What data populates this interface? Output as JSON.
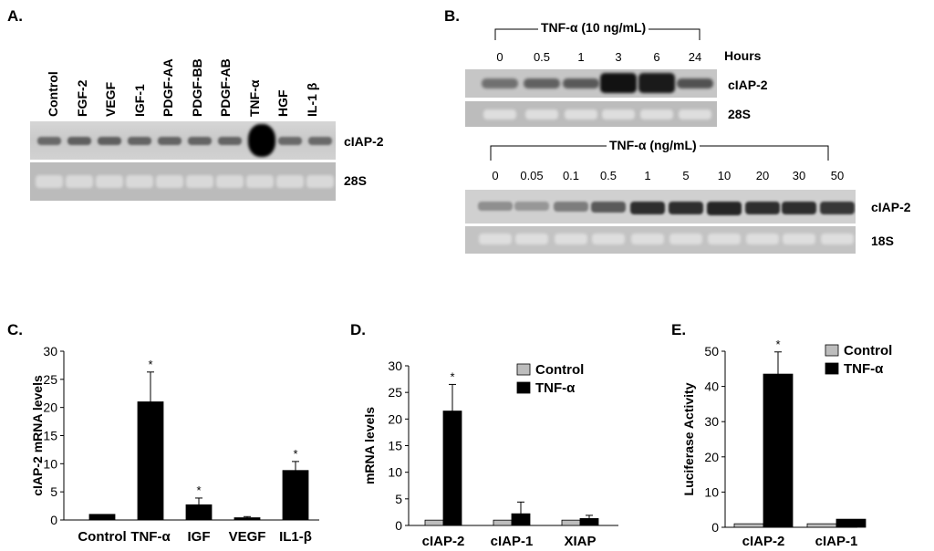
{
  "panelA": {
    "label": "A.",
    "lanes": [
      "Control",
      "FGF-2",
      "VEGF",
      "IGF-1",
      "PDGF-AA",
      "PDGF-BB",
      "PDGF-AB",
      "TNF-α",
      "HGF",
      "IL-1 β"
    ],
    "band_labels": [
      "cIAP-2",
      "28S"
    ],
    "ciap2_intensity": [
      0.45,
      0.55,
      0.55,
      0.5,
      0.5,
      0.5,
      0.5,
      1.0,
      0.45,
      0.45
    ]
  },
  "panelB": {
    "label": "B.",
    "top": {
      "header": "TNF-α (10 ng/mL)",
      "unit": "Hours",
      "values": [
        "0",
        "0.5",
        "1",
        "3",
        "6",
        "24"
      ],
      "band_labels": [
        "cIAP-2",
        "28S"
      ],
      "ciap2_intensity": [
        0.35,
        0.45,
        0.5,
        0.95,
        0.9,
        0.55
      ]
    },
    "bottom": {
      "header": "TNF-α (ng/mL)",
      "values": [
        "0",
        "0.05",
        "0.1",
        "0.5",
        "1",
        "5",
        "10",
        "20",
        "30",
        "50"
      ],
      "band_labels": [
        "cIAP-2",
        "18S"
      ],
      "ciap2_intensity": [
        0.25,
        0.2,
        0.35,
        0.55,
        0.8,
        0.8,
        0.85,
        0.8,
        0.8,
        0.75
      ]
    }
  },
  "chart_data": [
    {
      "panel": "C.",
      "type": "bar",
      "ylabel": "cIAP-2 mRNA levels",
      "categories": [
        "Control",
        "TNF-α",
        "IGF",
        "VEGF",
        "IL1-β"
      ],
      "values": [
        1,
        21,
        2.7,
        0.4,
        8.8
      ],
      "errors": [
        0,
        5.3,
        1.2,
        0.2,
        1.6
      ],
      "significant": [
        false,
        true,
        true,
        false,
        true
      ],
      "ylim": [
        0,
        30
      ],
      "yticks": [
        0,
        5,
        10,
        15,
        20,
        25,
        30
      ],
      "colors": {
        "bar": "#000000"
      }
    },
    {
      "panel": "D.",
      "type": "bar",
      "ylabel": "mRNA levels",
      "categories": [
        "cIAP-2",
        "cIAP-1",
        "XIAP"
      ],
      "series": [
        {
          "name": "Control",
          "values": [
            1,
            1,
            1
          ],
          "errors": [
            0,
            0,
            0
          ],
          "color": "#bdbdbd"
        },
        {
          "name": "TNF-α",
          "values": [
            21.5,
            2.2,
            1.3
          ],
          "errors": [
            5,
            2.2,
            0.6
          ],
          "color": "#000000"
        }
      ],
      "significant": [
        true,
        false,
        false
      ],
      "ylim": [
        0,
        30
      ],
      "yticks": [
        0,
        5,
        10,
        15,
        20,
        25,
        30
      ],
      "legend": "top-right"
    },
    {
      "panel": "E.",
      "type": "bar",
      "ylabel": "Luciferase Activity",
      "categories": [
        "cIAP-2",
        "cIAP-1"
      ],
      "series": [
        {
          "name": "Control",
          "values": [
            1,
            1
          ],
          "errors": [
            0,
            0
          ],
          "color": "#bdbdbd"
        },
        {
          "name": "TNF-α",
          "values": [
            43.5,
            2.3
          ],
          "errors": [
            6.3,
            0
          ],
          "color": "#000000"
        }
      ],
      "significant": [
        true,
        false
      ],
      "ylim": [
        0,
        50
      ],
      "yticks": [
        0,
        10,
        20,
        30,
        40,
        50
      ],
      "legend": "top-right"
    }
  ],
  "star": "*"
}
